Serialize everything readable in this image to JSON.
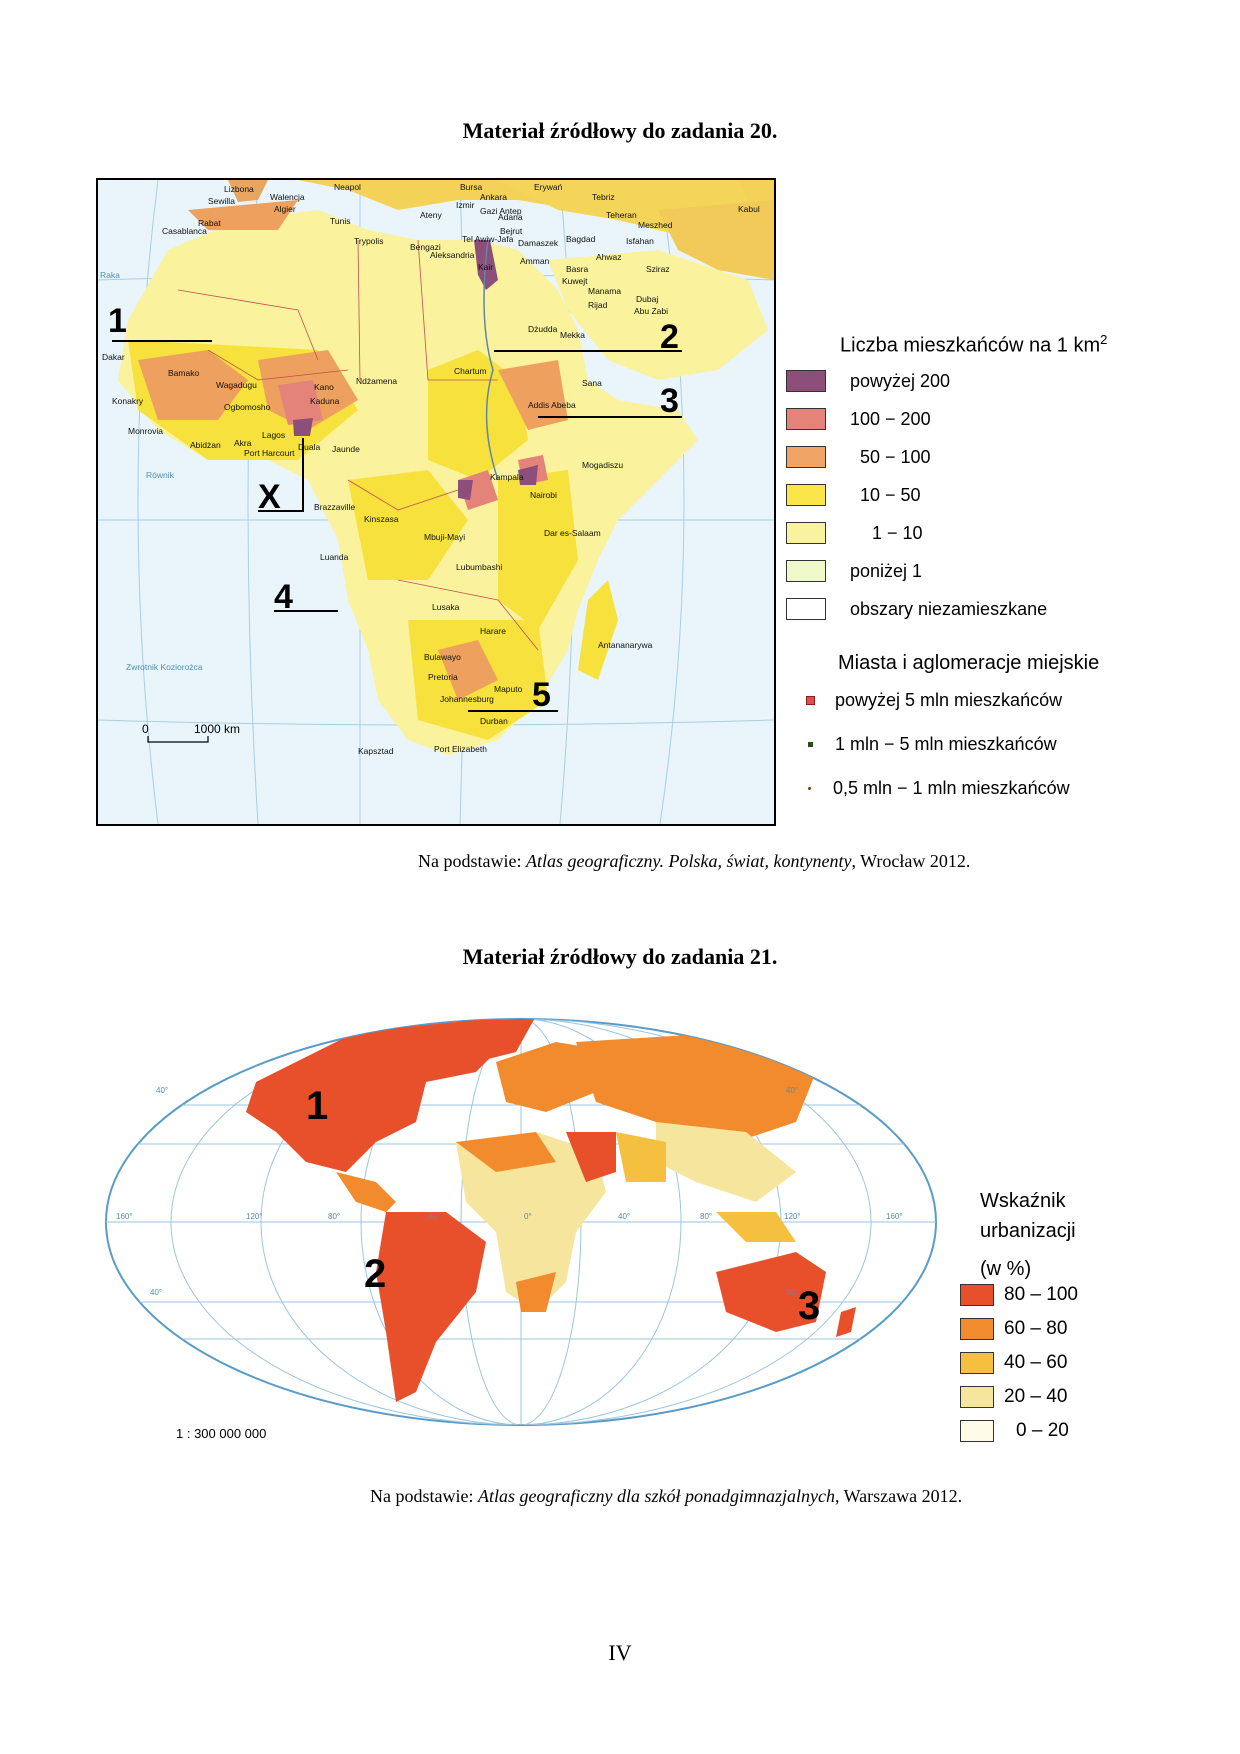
{
  "doc": {
    "heading20": "Materiał źródłowy do zadania 20.",
    "heading21": "Materiał źródłowy do zadania 21.",
    "source20_prefix": "Na podstawie: ",
    "source20_title": "Atlas geograficzny. Polska, świat, kontynenty",
    "source20_suffix": ", Wrocław 2012.",
    "source21_prefix": "Na podstawie: ",
    "source21_title": "Atlas geograficzny dla szkół ponadgimnazjalnych",
    "source21_suffix": ", Warszawa 2012.",
    "page_number": "IV"
  },
  "africa_map": {
    "markers": [
      "1",
      "2",
      "3",
      "X",
      "4",
      "5"
    ],
    "scale_zero": "0",
    "scale_label": "1000 km",
    "lines": {
      "raka": "Raka",
      "rownik": "Równik",
      "kozioroz": "Zwrotnik Koziorożca"
    },
    "cities": [
      "Lizbona",
      "Sewilla",
      "Walencja",
      "Neapol",
      "Algier",
      "Rabat",
      "Casablanca",
      "Tunis",
      "Trypolis",
      "Bengazi",
      "Tel Awiw-Jafa",
      "Aleksandria",
      "Kair",
      "Bursa",
      "Ankara",
      "Izmir",
      "Ateny",
      "Adana",
      "Bejrut",
      "Damaszek",
      "Amman",
      "Bagdad",
      "Teheran",
      "Tebriz",
      "Meszhed",
      "Isfahan",
      "Basra",
      "Kuwejt",
      "Ahwaz",
      "Sziraz",
      "Manama",
      "Rijad",
      "Dubaj",
      "Abu Zabi",
      "Dżudda",
      "Mekka",
      "Chartum",
      "Sana",
      "Addis Abeba",
      "Mogadiszu",
      "Dakar",
      "Bamako",
      "Wagadugu",
      "Konakry",
      "Monrovia",
      "Abidżan",
      "Akra",
      "Lagos",
      "Port Harcourt",
      "Ogbomosho",
      "Kano",
      "Kaduna",
      "Ndżamena",
      "Duala",
      "Jaunde",
      "Kampala",
      "Nairobi",
      "Dar es-Salaam",
      "Brazzaville",
      "Kinszasa",
      "Mbuji-Mayi",
      "Luanda",
      "Lubumbashi",
      "Lusaka",
      "Harare",
      "Bulawayo",
      "Antananarywa",
      "Pretoria",
      "Johannesburg",
      "Maputo",
      "Durban",
      "Kapsztad",
      "Port Elizabeth",
      "Gazi Antep",
      "Erywań",
      "Kabul"
    ]
  },
  "density_legend": {
    "title": "Liczba mieszkańców na 1 km",
    "title_sup": "2",
    "items": [
      {
        "label": "powyżej 200",
        "color": "#8b4f7a"
      },
      {
        "label": "100 − 200",
        "color": "#e4837a"
      },
      {
        "label": "50 − 100",
        "color": "#f0a567"
      },
      {
        "label": "10 − 50",
        "color": "#fbe64a"
      },
      {
        "label": "1 − 10",
        "color": "#faf39e"
      },
      {
        "label": "poniżej 1",
        "color": "#eef8c9"
      },
      {
        "label": "obszary niezamieszkane",
        "color": "#ffffff"
      }
    ],
    "cities_title": "Miasta i aglomeracje miejskie",
    "city_items": [
      {
        "label": "powyżej 5 mln mieszkańców"
      },
      {
        "label": "1 mln − 5 mln mieszkańców"
      },
      {
        "label": "0,5 mln − 1 mln mieszkańców"
      }
    ]
  },
  "world_map": {
    "markers": [
      "1",
      "2",
      "3"
    ],
    "scale": "1 : 300 000 000",
    "lat_labels": [
      "40°",
      "40°",
      "40°",
      "40°"
    ],
    "lon_labels": [
      "160°",
      "120°",
      "80°",
      "40°",
      "0°",
      "40°",
      "80°",
      "120°",
      "160°"
    ]
  },
  "urban_legend": {
    "title_line1": "Wskaźnik",
    "title_line2": "urbanizacji",
    "title_line3": "(w  %)",
    "items": [
      {
        "label": "80 – 100",
        "color": "#e8502c"
      },
      {
        "label": "60 – 80",
        "color": "#f28a2e"
      },
      {
        "label": "40 – 60",
        "color": "#f5c040"
      },
      {
        "label": "20 – 40",
        "color": "#f6e59c"
      },
      {
        "label": "0 – 20",
        "color": "#fdfbe8"
      }
    ]
  }
}
